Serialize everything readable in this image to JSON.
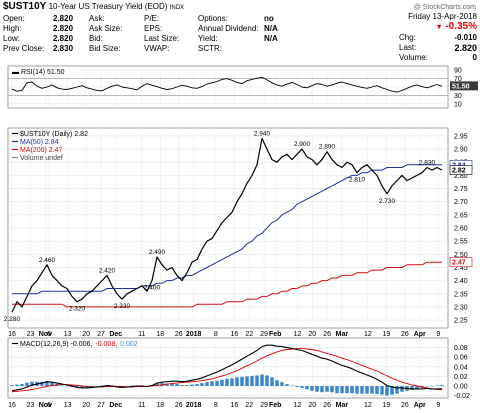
{
  "header": {
    "symbol": "$UST10Y",
    "name": "10-Year US Treasury Yield (EOD)",
    "exchange": "INDX",
    "copyright": "@ StockCharts.com"
  },
  "quote": {
    "left": [
      {
        "label": "Open:",
        "value": "2.820"
      },
      {
        "label": "High:",
        "value": "2.820"
      },
      {
        "label": "Low:",
        "value": "2.820"
      },
      {
        "label": "Prev Close:",
        "value": "2.830"
      }
    ],
    "mid": [
      {
        "label": "Ask:",
        "value": ""
      },
      {
        "label": "Ask Size:",
        "value": ""
      },
      {
        "label": "Bid:",
        "value": ""
      },
      {
        "label": "Bid Size:",
        "value": ""
      }
    ],
    "mid2": [
      {
        "label": "P/E:",
        "value": ""
      },
      {
        "label": "EPS:",
        "value": ""
      },
      {
        "label": "Last Size:",
        "value": ""
      },
      {
        "label": "VWAP:",
        "value": ""
      }
    ],
    "mid3": [
      {
        "label": "Options:",
        "value": "no"
      },
      {
        "label": "Annual Dividend:",
        "value": "N/A"
      },
      {
        "label": "Yield:",
        "value": "N/A"
      },
      {
        "label": "SCTR:",
        "value": ""
      }
    ],
    "date": "Friday   13-Apr-2018",
    "change_pct": "-0.35%",
    "right": [
      {
        "label": "Chg:",
        "value": "-0.010"
      },
      {
        "label": "Last:",
        "value": "2.820"
      },
      {
        "label": "Volume:",
        "value": "0"
      }
    ]
  },
  "colors": {
    "price": "#000000",
    "ma50": "#1f2f9c",
    "ma200": "#d01010",
    "macd": "#000000",
    "signal": "#e00000",
    "hist": "#3b86c8",
    "rsi": "#000000"
  },
  "chart_data": [
    {
      "type": "line",
      "title": "RSI(14) 51.50",
      "ylim": [
        0,
        100
      ],
      "yticks": [
        "90",
        "70",
        "50",
        "30",
        "10"
      ],
      "last_label": "51.50",
      "series": [
        {
          "name": "RSI(14)",
          "values": [
            45,
            40,
            42,
            60,
            62,
            52,
            47,
            50,
            55,
            48,
            45,
            44,
            47,
            50,
            53,
            48,
            45,
            42,
            41,
            47,
            52,
            55,
            50,
            48,
            46,
            43,
            52,
            58,
            54,
            51,
            47,
            44,
            46,
            50,
            54,
            52,
            48,
            47,
            51,
            57,
            60,
            63,
            68,
            70,
            66,
            61,
            58,
            65,
            68,
            71,
            73,
            67,
            60,
            55,
            52,
            57,
            61,
            56,
            50,
            48,
            53,
            58,
            56,
            52,
            55,
            59,
            62,
            58,
            55,
            52,
            49,
            47,
            50,
            53,
            48,
            44,
            40,
            38,
            42,
            47,
            52,
            55,
            51,
            48,
            52,
            56,
            51.5
          ]
        }
      ]
    },
    {
      "type": "line",
      "title": "$UST10Y (Daily) 2.82",
      "ylim": [
        2.22,
        2.98
      ],
      "yticks": [
        "2.95",
        "2.90",
        "2.85",
        "2.80",
        "2.75",
        "2.70",
        "2.65",
        "2.60",
        "2.55",
        "2.50",
        "2.45",
        "2.40",
        "2.35",
        "2.30",
        "2.25"
      ],
      "legend": [
        {
          "name": "$UST10Y (Daily) 2.82"
        },
        {
          "name": "MA(50) 2.84"
        },
        {
          "name": "MA(200) 2.47"
        },
        {
          "name": "Volume undef"
        }
      ],
      "annotations": [
        {
          "text": "2.280",
          "i": 0,
          "value": 2.28
        },
        {
          "text": "2.460",
          "i": 7,
          "value": 2.46
        },
        {
          "text": "2.320",
          "i": 13,
          "value": 2.32
        },
        {
          "text": "2.420",
          "i": 19,
          "value": 2.42
        },
        {
          "text": "2.330",
          "i": 22,
          "value": 2.33
        },
        {
          "text": "2.400",
          "i": 28,
          "value": 2.4
        },
        {
          "text": "2.490",
          "i": 29,
          "value": 2.49
        },
        {
          "text": "2.940",
          "i": 50,
          "value": 2.94
        },
        {
          "text": "2.900",
          "i": 58,
          "value": 2.9
        },
        {
          "text": "2.890",
          "i": 63,
          "value": 2.89
        },
        {
          "text": "2.810",
          "i": 69,
          "value": 2.81
        },
        {
          "text": "2.730",
          "i": 75,
          "value": 2.73
        },
        {
          "text": "2.830",
          "i": 83,
          "value": 2.83
        }
      ],
      "right_labels": [
        {
          "text": "2.84",
          "value": 2.84,
          "color": "#1f2f9c"
        },
        {
          "text": "2.82",
          "value": 2.82,
          "color": "#000000"
        },
        {
          "text": "2.47",
          "value": 2.47,
          "color": "#d01010"
        }
      ],
      "series": [
        {
          "name": "$UST10Y",
          "values": [
            2.28,
            2.32,
            2.3,
            2.34,
            2.38,
            2.4,
            2.43,
            2.46,
            2.42,
            2.4,
            2.38,
            2.37,
            2.34,
            2.32,
            2.33,
            2.35,
            2.36,
            2.38,
            2.4,
            2.42,
            2.38,
            2.35,
            2.33,
            2.35,
            2.36,
            2.37,
            2.38,
            2.36,
            2.4,
            2.49,
            2.46,
            2.44,
            2.45,
            2.42,
            2.4,
            2.43,
            2.47,
            2.48,
            2.52,
            2.55,
            2.56,
            2.59,
            2.62,
            2.64,
            2.66,
            2.7,
            2.73,
            2.77,
            2.8,
            2.84,
            2.94,
            2.9,
            2.86,
            2.85,
            2.87,
            2.88,
            2.86,
            2.88,
            2.9,
            2.87,
            2.86,
            2.84,
            2.86,
            2.89,
            2.86,
            2.84,
            2.83,
            2.85,
            2.84,
            2.81,
            2.83,
            2.84,
            2.82,
            2.8,
            2.76,
            2.73,
            2.76,
            2.78,
            2.8,
            2.78,
            2.79,
            2.8,
            2.81,
            2.83,
            2.82,
            2.83,
            2.82
          ]
        },
        {
          "name": "MA(50)",
          "values": [
            2.35,
            2.35,
            2.35,
            2.35,
            2.35,
            2.35,
            2.36,
            2.36,
            2.36,
            2.36,
            2.36,
            2.36,
            2.36,
            2.36,
            2.36,
            2.36,
            2.36,
            2.36,
            2.36,
            2.37,
            2.37,
            2.37,
            2.37,
            2.37,
            2.37,
            2.37,
            2.38,
            2.38,
            2.38,
            2.39,
            2.39,
            2.4,
            2.4,
            2.41,
            2.41,
            2.42,
            2.42,
            2.43,
            2.44,
            2.45,
            2.46,
            2.47,
            2.48,
            2.49,
            2.5,
            2.51,
            2.52,
            2.54,
            2.55,
            2.57,
            2.58,
            2.6,
            2.62,
            2.63,
            2.65,
            2.66,
            2.67,
            2.69,
            2.7,
            2.71,
            2.72,
            2.73,
            2.74,
            2.75,
            2.76,
            2.77,
            2.78,
            2.79,
            2.8,
            2.8,
            2.81,
            2.81,
            2.82,
            2.82,
            2.82,
            2.83,
            2.83,
            2.83,
            2.83,
            2.84,
            2.84,
            2.84,
            2.84,
            2.84,
            2.84,
            2.84,
            2.84
          ]
        },
        {
          "name": "MA(200)",
          "values": [
            2.31,
            2.31,
            2.31,
            2.31,
            2.31,
            2.31,
            2.31,
            2.31,
            2.31,
            2.31,
            2.31,
            2.3,
            2.3,
            2.3,
            2.3,
            2.3,
            2.3,
            2.3,
            2.3,
            2.3,
            2.3,
            2.3,
            2.3,
            2.3,
            2.3,
            2.3,
            2.3,
            2.3,
            2.3,
            2.3,
            2.3,
            2.3,
            2.3,
            2.3,
            2.3,
            2.3,
            2.3,
            2.31,
            2.31,
            2.31,
            2.31,
            2.31,
            2.31,
            2.32,
            2.32,
            2.32,
            2.32,
            2.33,
            2.33,
            2.33,
            2.34,
            2.34,
            2.35,
            2.35,
            2.36,
            2.36,
            2.37,
            2.37,
            2.38,
            2.38,
            2.39,
            2.39,
            2.4,
            2.4,
            2.41,
            2.41,
            2.42,
            2.42,
            2.42,
            2.43,
            2.43,
            2.43,
            2.44,
            2.44,
            2.44,
            2.45,
            2.45,
            2.45,
            2.45,
            2.46,
            2.46,
            2.46,
            2.46,
            2.47,
            2.47,
            2.47,
            2.47
          ]
        }
      ]
    },
    {
      "type": "line",
      "title": "MACD(12,26,9) -0.006, -0.008, 0.002",
      "ylim": [
        -0.025,
        0.1
      ],
      "yticks": [
        "0.08",
        "0.06",
        "0.04",
        "0.02",
        "0.00",
        "-0.02"
      ],
      "legend": [
        {
          "name": "MACD(12,26,9) -0.006,",
          "color": "#000000"
        },
        {
          "name": "-0.008,",
          "color": "#e00000"
        },
        {
          "name": "0.002",
          "color": "#3b86c8"
        }
      ],
      "series": [
        {
          "name": "MACD",
          "values": [
            -0.01,
            -0.008,
            -0.006,
            -0.002,
            0.002,
            0.004,
            0.006,
            0.009,
            0.008,
            0.006,
            0.004,
            0.002,
            0.0,
            -0.003,
            -0.004,
            -0.004,
            -0.003,
            -0.002,
            -0.001,
            0.001,
            0.0,
            -0.002,
            -0.003,
            -0.002,
            -0.001,
            0.0,
            0.0,
            -0.001,
            0.001,
            0.006,
            0.008,
            0.009,
            0.01,
            0.01,
            0.009,
            0.01,
            0.012,
            0.014,
            0.017,
            0.021,
            0.025,
            0.029,
            0.034,
            0.039,
            0.044,
            0.05,
            0.056,
            0.062,
            0.068,
            0.074,
            0.082,
            0.085,
            0.085,
            0.083,
            0.082,
            0.08,
            0.078,
            0.076,
            0.074,
            0.07,
            0.066,
            0.062,
            0.058,
            0.056,
            0.052,
            0.047,
            0.043,
            0.04,
            0.036,
            0.031,
            0.027,
            0.023,
            0.019,
            0.014,
            0.008,
            0.001,
            -0.002,
            -0.004,
            -0.004,
            -0.005,
            -0.006,
            -0.006,
            -0.006,
            -0.005,
            -0.006,
            -0.006,
            -0.006
          ]
        },
        {
          "name": "Signal",
          "values": [
            -0.012,
            -0.011,
            -0.01,
            -0.009,
            -0.007,
            -0.005,
            -0.003,
            -0.001,
            0.001,
            0.002,
            0.003,
            0.003,
            0.002,
            0.001,
            0.0,
            -0.001,
            -0.002,
            -0.002,
            -0.002,
            -0.001,
            -0.001,
            -0.001,
            -0.001,
            -0.002,
            -0.002,
            -0.001,
            -0.001,
            -0.001,
            0.0,
            0.001,
            0.002,
            0.004,
            0.005,
            0.006,
            0.007,
            0.008,
            0.009,
            0.01,
            0.011,
            0.013,
            0.015,
            0.018,
            0.021,
            0.024,
            0.028,
            0.032,
            0.037,
            0.042,
            0.047,
            0.052,
            0.058,
            0.063,
            0.067,
            0.071,
            0.074,
            0.076,
            0.077,
            0.078,
            0.078,
            0.077,
            0.076,
            0.074,
            0.071,
            0.068,
            0.065,
            0.062,
            0.058,
            0.055,
            0.051,
            0.047,
            0.043,
            0.039,
            0.035,
            0.031,
            0.026,
            0.021,
            0.016,
            0.012,
            0.008,
            0.005,
            0.002,
            0.0,
            -0.002,
            -0.004,
            -0.006,
            -0.007,
            -0.008
          ]
        },
        {
          "name": "Histogram",
          "values": [
            0.002,
            0.003,
            0.004,
            0.007,
            0.009,
            0.009,
            0.009,
            0.01,
            0.007,
            0.004,
            0.001,
            -0.001,
            -0.002,
            -0.004,
            -0.004,
            -0.003,
            -0.001,
            0.0,
            0.001,
            0.002,
            0.001,
            -0.001,
            -0.002,
            0.0,
            0.001,
            0.001,
            0.001,
            0.0,
            0.001,
            0.005,
            0.006,
            0.005,
            0.005,
            0.004,
            0.002,
            0.002,
            0.003,
            0.004,
            0.006,
            0.008,
            0.01,
            0.011,
            0.013,
            0.015,
            0.016,
            0.018,
            0.019,
            0.02,
            0.021,
            0.022,
            0.024,
            0.022,
            0.018,
            0.012,
            0.008,
            0.004,
            0.001,
            -0.002,
            -0.004,
            -0.007,
            -0.01,
            -0.012,
            -0.013,
            -0.012,
            -0.013,
            -0.015,
            -0.015,
            -0.015,
            -0.015,
            -0.016,
            -0.016,
            -0.016,
            -0.016,
            -0.017,
            -0.018,
            -0.02,
            -0.018,
            -0.016,
            -0.012,
            -0.01,
            -0.008,
            -0.006,
            -0.004,
            -0.001,
            0.0,
            0.001,
            0.002
          ]
        }
      ]
    }
  ],
  "x_axis": {
    "labels": [
      {
        "text": "16",
        "i": 0
      },
      {
        "text": "23",
        "i": 5
      },
      {
        "text": "Nov",
        "i": 9,
        "bold": true
      },
      {
        "text": "6",
        "i": 10
      },
      {
        "text": "13",
        "i": 15
      },
      {
        "text": "20",
        "i": 20
      },
      {
        "text": "27",
        "i": 24
      },
      {
        "text": "Dec",
        "i": 28,
        "bold": true
      },
      {
        "text": "11",
        "i": 35
      },
      {
        "text": "18",
        "i": 40
      },
      {
        "text": "26",
        "i": 45
      },
      {
        "text": "2018",
        "i": 49,
        "bold": true
      },
      {
        "text": "8",
        "i": 55
      },
      {
        "text": "16",
        "i": 60
      },
      {
        "text": "22",
        "i": 64
      },
      {
        "text": "29",
        "i": 68
      },
      {
        "text": "Feb",
        "i": 71,
        "bold": true
      },
      {
        "text": "12",
        "i": 77
      },
      {
        "text": "20",
        "i": 81
      },
      {
        "text": "26",
        "i": 85
      },
      {
        "text": "Mar",
        "i": 89,
        "bold": true
      },
      {
        "text": "12",
        "i": 96
      },
      {
        "text": "19",
        "i": 101
      },
      {
        "text": "26",
        "i": 106
      },
      {
        "text": "Apr",
        "i": 110,
        "bold": true
      },
      {
        "text": "9",
        "i": 115
      }
    ]
  }
}
